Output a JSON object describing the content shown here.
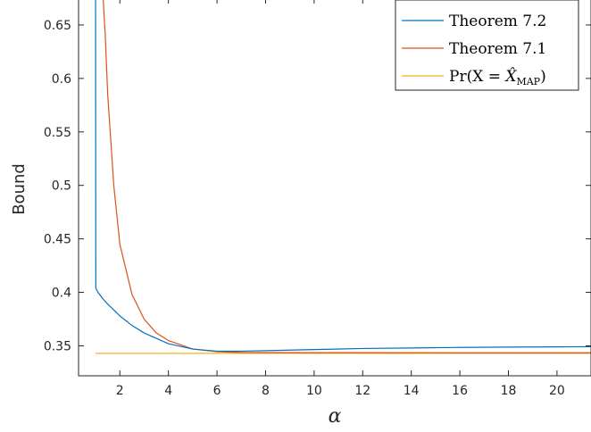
{
  "chart_data": {
    "type": "line",
    "title": "",
    "xlabel": "α",
    "ylabel": "Bound",
    "xlim": [
      0.3,
      21.4
    ],
    "ylim": [
      0.322,
      0.675
    ],
    "grid": false,
    "legend_position": "top-right",
    "xticks": [
      2,
      4,
      6,
      8,
      10,
      12,
      14,
      16,
      18,
      20
    ],
    "yticks": [
      0.35,
      0.4,
      0.45,
      0.5,
      0.55,
      0.6,
      0.65
    ],
    "xtick_labels": [
      "2",
      "4",
      "6",
      "8",
      "10",
      "12",
      "14",
      "16",
      "18",
      "20"
    ],
    "ytick_labels": [
      "0.35",
      "0.4",
      "0.45",
      "0.5",
      "0.55",
      "0.6",
      "0.65"
    ],
    "series": [
      {
        "name": "Theorem 7.2",
        "color": "#0072BD",
        "x": [
          1.0,
          1.01,
          1.05,
          1.1,
          1.3,
          1.5,
          2.0,
          2.5,
          3.0,
          4.0,
          5.0,
          6.0,
          7.0,
          8.0,
          10.0,
          12.0,
          14.0,
          16.0,
          18.0,
          20.0,
          21.4
        ],
        "y": [
          0.68,
          0.404,
          0.402,
          0.4,
          0.394,
          0.389,
          0.378,
          0.369,
          0.362,
          0.352,
          0.347,
          0.345,
          0.345,
          0.3455,
          0.3465,
          0.3475,
          0.348,
          0.3485,
          0.3488,
          0.349,
          0.3492
        ]
      },
      {
        "name": "Theorem 7.1",
        "color": "#D95319",
        "x": [
          1.3,
          1.4,
          1.5,
          1.75,
          2.0,
          2.5,
          3.0,
          3.5,
          4.0,
          5.0,
          6.0,
          7.0,
          8.0,
          10.0,
          12.0,
          16.0,
          20.0,
          21.4
        ],
        "y": [
          0.68,
          0.64,
          0.585,
          0.5,
          0.445,
          0.398,
          0.375,
          0.362,
          0.355,
          0.347,
          0.3445,
          0.3438,
          0.3437,
          0.3436,
          0.3436,
          0.3435,
          0.3435,
          0.3435
        ]
      },
      {
        "name": "Pr(X = X̂MAP)",
        "color": "#EDB120",
        "x": [
          1.0,
          21.4
        ],
        "y": [
          0.343,
          0.343
        ]
      }
    ],
    "legend": {
      "entries": [
        {
          "text": "Theorem 7.2"
        },
        {
          "text": "Theorem 7.1"
        },
        {
          "prefix": "Pr(X = ",
          "symbol": "X̂",
          "subscript": "MAP",
          "suffix": ")"
        }
      ]
    }
  }
}
